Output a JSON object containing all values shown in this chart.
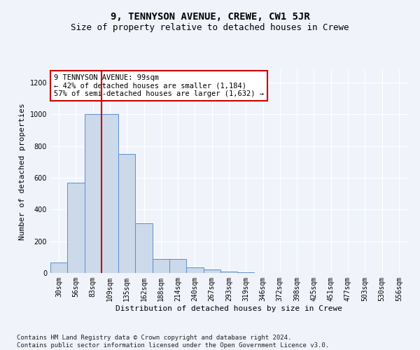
{
  "title": "9, TENNYSON AVENUE, CREWE, CW1 5JR",
  "subtitle": "Size of property relative to detached houses in Crewe",
  "xlabel": "Distribution of detached houses by size in Crewe",
  "ylabel": "Number of detached properties",
  "bar_labels": [
    "30sqm",
    "56sqm",
    "83sqm",
    "109sqm",
    "135sqm",
    "162sqm",
    "188sqm",
    "214sqm",
    "240sqm",
    "267sqm",
    "293sqm",
    "319sqm",
    "346sqm",
    "372sqm",
    "398sqm",
    "425sqm",
    "451sqm",
    "477sqm",
    "503sqm",
    "530sqm",
    "556sqm"
  ],
  "bar_values": [
    65,
    570,
    1000,
    1000,
    750,
    315,
    90,
    90,
    35,
    20,
    10,
    5,
    2,
    2,
    1,
    0,
    0,
    0,
    0,
    0,
    0
  ],
  "bar_color": "#ccd9ea",
  "bar_edge_color": "#5b8fcc",
  "vline_x_index": 3,
  "vline_color": "#cc0000",
  "annotation_text": "9 TENNYSON AVENUE: 99sqm\n← 42% of detached houses are smaller (1,184)\n57% of semi-detached houses are larger (1,632) →",
  "annotation_box_facecolor": "white",
  "annotation_box_edgecolor": "#cc0000",
  "ylim": [
    0,
    1280
  ],
  "yticks": [
    0,
    200,
    400,
    600,
    800,
    1000,
    1200
  ],
  "footnote": "Contains HM Land Registry data © Crown copyright and database right 2024.\nContains public sector information licensed under the Open Government Licence v3.0.",
  "fig_facecolor": "#f0f4fa",
  "plot_facecolor": "#f0f4fa",
  "title_fontsize": 10,
  "subtitle_fontsize": 9,
  "tick_fontsize": 7,
  "ylabel_fontsize": 8,
  "xlabel_fontsize": 8,
  "annotation_fontsize": 7.5,
  "footnote_fontsize": 6.5
}
